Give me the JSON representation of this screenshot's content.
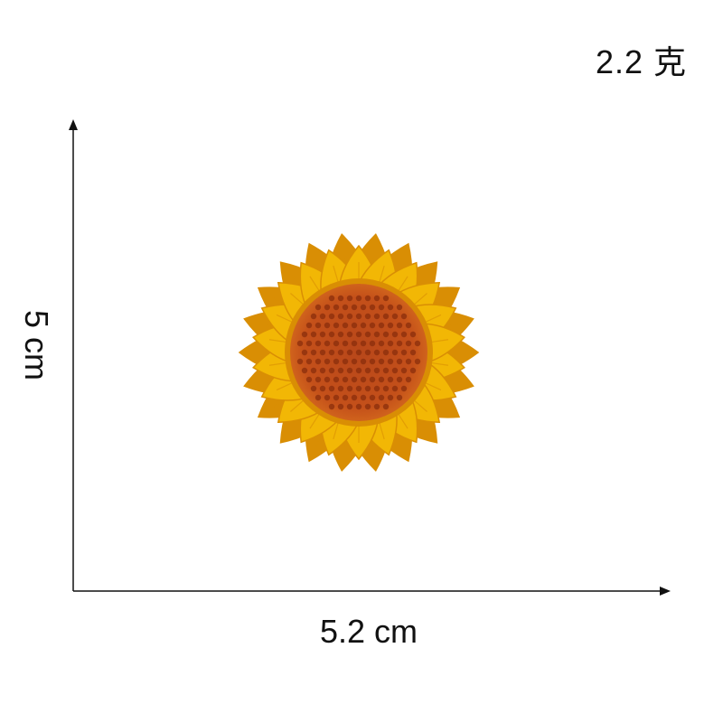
{
  "weight_label": "2.2 克",
  "dimensions": {
    "width_label": "5.2 cm",
    "height_label": "5 cm"
  },
  "product": {
    "image": "sunflower-embroidered-patch",
    "colors": {
      "petal": "#F2B705",
      "petal_shadow": "#D98E04",
      "center": "#C4501A",
      "center_dot": "#8A2E0C"
    }
  }
}
